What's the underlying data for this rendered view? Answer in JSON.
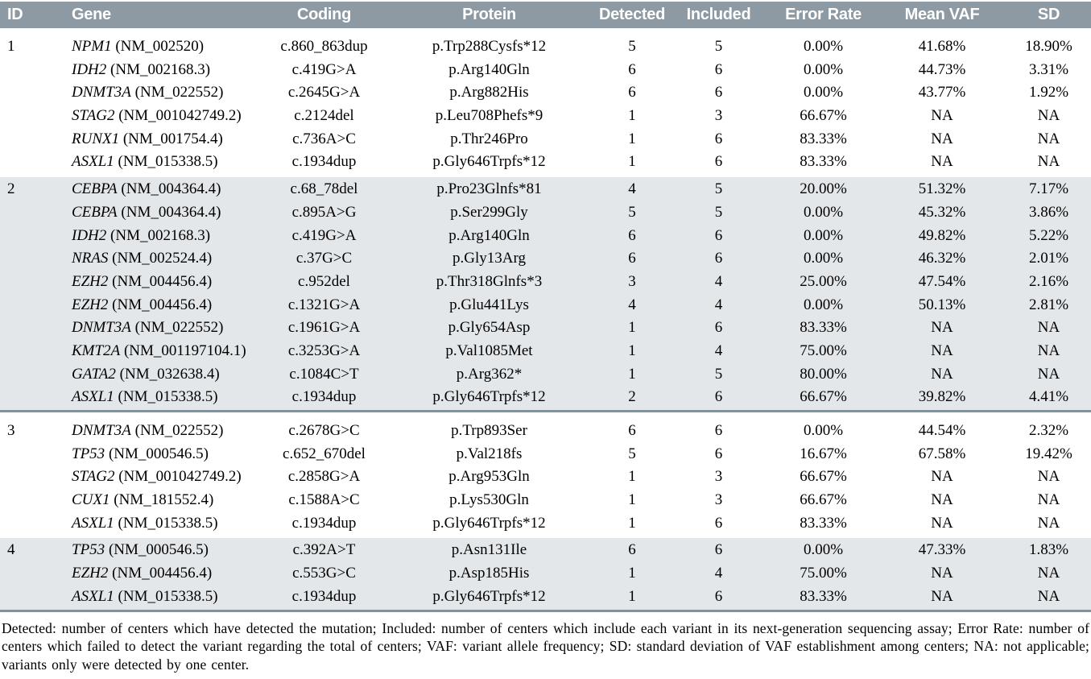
{
  "colors": {
    "header_bg": "#8D9AA3",
    "header_text": "#FFFFFF",
    "band_bg": "#E3E7EA",
    "separator": "#7E93A1"
  },
  "header": {
    "columns": [
      "ID",
      "Gene",
      "Coding",
      "Protein",
      "Detected",
      "Included",
      "Error Rate",
      "Mean VAF",
      "SD"
    ]
  },
  "groups": [
    {
      "id": "1",
      "shaded": false,
      "rows": [
        {
          "gene": "NPM1",
          "transcript": "(NM_002520)",
          "coding": "c.860_863dup",
          "protein": "p.Trp288Cysfs*12",
          "detected": "5",
          "included": "5",
          "error_rate": "0.00%",
          "mean_vaf": "41.68%",
          "sd": "18.90%"
        },
        {
          "gene": "IDH2",
          "transcript": "(NM_002168.3)",
          "coding": "c.419G>A",
          "protein": "p.Arg140Gln",
          "detected": "6",
          "included": "6",
          "error_rate": "0.00%",
          "mean_vaf": "44.73%",
          "sd": "3.31%"
        },
        {
          "gene": "DNMT3A",
          "transcript": "(NM_022552)",
          "coding": "c.2645G>A",
          "protein": "p.Arg882His",
          "detected": "6",
          "included": "6",
          "error_rate": "0.00%",
          "mean_vaf": "43.77%",
          "sd": "1.92%"
        },
        {
          "gene": "STAG2",
          "transcript": "(NM_001042749.2)",
          "coding": "c.2124del",
          "protein": "p.Leu708Phefs*9",
          "detected": "1",
          "included": "3",
          "error_rate": "66.67%",
          "mean_vaf": "NA",
          "sd": "NA"
        },
        {
          "gene": "RUNX1",
          "transcript": "(NM_001754.4)",
          "coding": "c.736A>C",
          "protein": "p.Thr246Pro",
          "detected": "1",
          "included": "6",
          "error_rate": "83.33%",
          "mean_vaf": "NA",
          "sd": "NA"
        },
        {
          "gene": "ASXL1",
          "transcript": "(NM_015338.5)",
          "coding": "c.1934dup",
          "protein": "p.Gly646Trpfs*12",
          "detected": "1",
          "included": "6",
          "error_rate": "83.33%",
          "mean_vaf": "NA",
          "sd": "NA"
        }
      ]
    },
    {
      "id": "2",
      "shaded": true,
      "rows": [
        {
          "gene": "CEBPA",
          "transcript": "(NM_004364.4)",
          "coding": "c.68_78del",
          "protein": "p.Pro23Glnfs*81",
          "detected": "4",
          "included": "5",
          "error_rate": "20.00%",
          "mean_vaf": "51.32%",
          "sd": "7.17%"
        },
        {
          "gene": "CEBPA",
          "transcript": "(NM_004364.4)",
          "coding": "c.895A>G",
          "protein": "p.Ser299Gly",
          "detected": "5",
          "included": "5",
          "error_rate": "0.00%",
          "mean_vaf": "45.32%",
          "sd": "3.86%"
        },
        {
          "gene": "IDH2",
          "transcript": "(NM_002168.3)",
          "coding": "c.419G>A",
          "protein": "p.Arg140Gln",
          "detected": "6",
          "included": "6",
          "error_rate": "0.00%",
          "mean_vaf": "49.82%",
          "sd": "5.22%"
        },
        {
          "gene": "NRAS",
          "transcript": "(NM_002524.4)",
          "coding": "c.37G>C",
          "protein": "p.Gly13Arg",
          "detected": "6",
          "included": "6",
          "error_rate": "0.00%",
          "mean_vaf": "46.32%",
          "sd": "2.01%"
        },
        {
          "gene": "EZH2",
          "transcript": "(NM_004456.4)",
          "coding": "c.952del",
          "protein": "p.Thr318Glnfs*3",
          "detected": "3",
          "included": "4",
          "error_rate": "25.00%",
          "mean_vaf": "47.54%",
          "sd": "2.16%"
        },
        {
          "gene": "EZH2",
          "transcript": "(NM_004456.4)",
          "coding": "c.1321G>A",
          "protein": "p.Glu441Lys",
          "detected": "4",
          "included": "4",
          "error_rate": "0.00%",
          "mean_vaf": "50.13%",
          "sd": "2.81%"
        },
        {
          "gene": "DNMT3A",
          "transcript": "(NM_022552)",
          "coding": "c.1961G>A",
          "protein": "p.Gly654Asp",
          "detected": "1",
          "included": "6",
          "error_rate": "83.33%",
          "mean_vaf": "NA",
          "sd": "NA"
        },
        {
          "gene": "KMT2A",
          "transcript": "(NM_001197104.1)",
          "coding": "c.3253G>A",
          "protein": "p.Val1085Met",
          "detected": "1",
          "included": "4",
          "error_rate": "75.00%",
          "mean_vaf": "NA",
          "sd": "NA"
        },
        {
          "gene": "GATA2",
          "transcript": "(NM_032638.4)",
          "coding": "c.1084C>T",
          "protein": "p.Arg362*",
          "detected": "1",
          "included": "5",
          "error_rate": "80.00%",
          "mean_vaf": "NA",
          "sd": "NA"
        },
        {
          "gene": "ASXL1",
          "transcript": "(NM_015338.5)",
          "coding": "c.1934dup",
          "protein": "p.Gly646Trpfs*12",
          "detected": "2",
          "included": "6",
          "error_rate": "66.67%",
          "mean_vaf": "39.82%",
          "sd": "4.41%"
        }
      ]
    },
    {
      "id": "3",
      "shaded": false,
      "rows": [
        {
          "gene": "DNMT3A",
          "transcript": "(NM_022552)",
          "coding": "c.2678G>C",
          "protein": "p.Trp893Ser",
          "detected": "6",
          "included": "6",
          "error_rate": "0.00%",
          "mean_vaf": "44.54%",
          "sd": "2.32%"
        },
        {
          "gene": "TP53",
          "transcript": "(NM_000546.5)",
          "coding": "c.652_670del",
          "protein": "p.Val218fs",
          "detected": "5",
          "included": "6",
          "error_rate": "16.67%",
          "mean_vaf": "67.58%",
          "sd": "19.42%"
        },
        {
          "gene": "STAG2",
          "transcript": "(NM_001042749.2)",
          "coding": "c.2858G>A",
          "protein": "p.Arg953Gln",
          "detected": "1",
          "included": "3",
          "error_rate": "66.67%",
          "mean_vaf": "NA",
          "sd": "NA"
        },
        {
          "gene": "CUX1",
          "transcript": "(NM_181552.4)",
          "coding": "c.1588A>C",
          "protein": "p.Lys530Gln",
          "detected": "1",
          "included": "3",
          "error_rate": "66.67%",
          "mean_vaf": "NA",
          "sd": "NA"
        },
        {
          "gene": "ASXL1",
          "transcript": "(NM_015338.5)",
          "coding": "c.1934dup",
          "protein": "p.Gly646Trpfs*12",
          "detected": "1",
          "included": "6",
          "error_rate": "83.33%",
          "mean_vaf": "NA",
          "sd": "NA"
        }
      ]
    },
    {
      "id": "4",
      "shaded": true,
      "rows": [
        {
          "gene": "TP53",
          "transcript": "(NM_000546.5)",
          "coding": "c.392A>T",
          "protein": "p.Asn131Ile",
          "detected": "6",
          "included": "6",
          "error_rate": "0.00%",
          "mean_vaf": "47.33%",
          "sd": "1.83%"
        },
        {
          "gene": "EZH2",
          "transcript": "(NM_004456.4)",
          "coding": "c.553G>C",
          "protein": "p.Asp185His",
          "detected": "1",
          "included": "4",
          "error_rate": "75.00%",
          "mean_vaf": "NA",
          "sd": "NA"
        },
        {
          "gene": "ASXL1",
          "transcript": "(NM_015338.5)",
          "coding": "c.1934dup",
          "protein": "p.Gly646Trpfs*12",
          "detected": "1",
          "included": "6",
          "error_rate": "83.33%",
          "mean_vaf": "NA",
          "sd": "NA"
        }
      ]
    }
  ],
  "footnote": "Detected: number of centers which have detected the mutation; Included: number of centers which include each variant in its next-generation sequencing assay; Error Rate: number of centers which failed to detect the variant regarding the total of centers; VAF: variant allele frequency; SD: standard deviation of VAF establishment among centers; NA: not applicable; variants only were detected by one center."
}
